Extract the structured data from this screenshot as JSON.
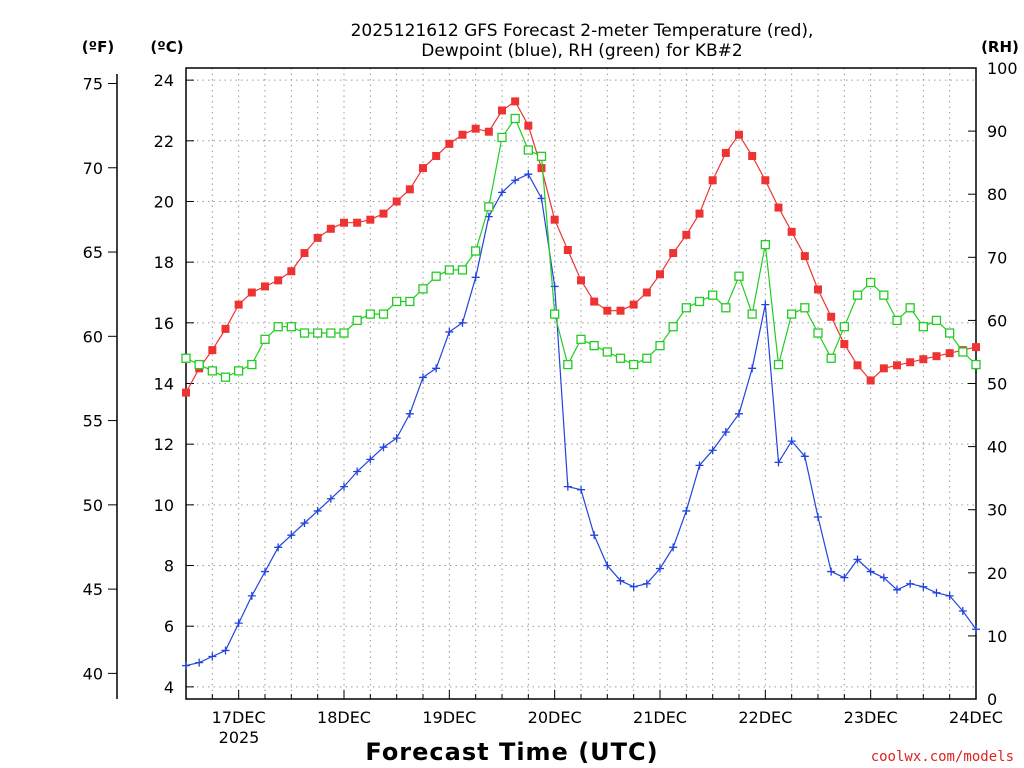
{
  "chart_data": {
    "type": "line",
    "title_line1": "2025121612 GFS Forecast 2-meter Temperature (red),",
    "title_line2": "Dewpoint (blue), RH (green) for KB#2",
    "left_unit_f": "(ºF)",
    "left_unit_c": "(ºC)",
    "right_unit": "(RH)",
    "xlabel": "Forecast Time (UTC)",
    "credit": "coolwx.com/models",
    "x_year_label": "2025",
    "x_tick_labels": [
      "17DEC",
      "18DEC",
      "19DEC",
      "20DEC",
      "21DEC",
      "22DEC",
      "23DEC",
      "24DEC"
    ],
    "x_tick_days": [
      17,
      18,
      19,
      20,
      21,
      22,
      23,
      24
    ],
    "xlim_days": [
      16.5,
      24.0
    ],
    "ylim_c": [
      3.6,
      24.4
    ],
    "c_ticks": [
      4,
      6,
      8,
      10,
      12,
      14,
      16,
      18,
      20,
      22,
      24
    ],
    "f_ticks": [
      40,
      45,
      50,
      55,
      60,
      65,
      70,
      75
    ],
    "f_tick_labels": [
      "40",
      "45",
      "50",
      "55",
      "60",
      "65",
      "70",
      "75"
    ],
    "rh_ticks": [
      0,
      10,
      20,
      30,
      40,
      50,
      60,
      70,
      80,
      90,
      100
    ],
    "rh_tick_labels": [
      "0",
      "10",
      "20",
      "30",
      "40",
      "50",
      "60",
      "70",
      "80",
      "90",
      "100"
    ],
    "rh_lim": [
      0,
      100
    ],
    "grid": true,
    "colors": {
      "temperature": "#ee3333",
      "dewpoint": "#2244dd",
      "rh": "#22cc22",
      "credit": "#dd2222"
    },
    "series": [
      {
        "name": "Temperature (°C)",
        "marker": "filled-square",
        "color": "#ee3333",
        "x": [
          16.5,
          16.625,
          16.75,
          16.875,
          17.0,
          17.125,
          17.25,
          17.375,
          17.5,
          17.625,
          17.75,
          17.875,
          18.0,
          18.125,
          18.25,
          18.375,
          18.5,
          18.625,
          18.75,
          18.875,
          19.0,
          19.125,
          19.25,
          19.375,
          19.5,
          19.625,
          19.75,
          19.875,
          20.0,
          20.125,
          20.25,
          20.375,
          20.5,
          20.625,
          20.75,
          20.875,
          21.0,
          21.125,
          21.25,
          21.375,
          21.5,
          21.625,
          21.75,
          21.875,
          22.0,
          22.125,
          22.25,
          22.375,
          22.5,
          22.625,
          22.75,
          22.875,
          23.0,
          23.125,
          23.25,
          23.375,
          23.5,
          23.625,
          23.75,
          23.875,
          24.0
        ],
        "values": [
          13.7,
          14.5,
          15.1,
          15.8,
          16.6,
          17.0,
          17.2,
          17.4,
          17.7,
          18.3,
          18.8,
          19.1,
          19.3,
          19.3,
          19.4,
          19.6,
          20.0,
          20.4,
          21.1,
          21.5,
          21.9,
          22.2,
          22.4,
          22.3,
          23.0,
          23.3,
          22.5,
          21.1,
          19.4,
          18.4,
          17.4,
          16.7,
          16.4,
          16.4,
          16.6,
          17.0,
          17.6,
          18.3,
          18.9,
          19.6,
          20.7,
          21.6,
          22.2,
          21.5,
          20.7,
          19.8,
          19.0,
          18.2,
          17.1,
          16.2,
          15.3,
          14.6,
          14.1,
          14.5,
          14.6,
          14.7,
          14.8,
          14.9,
          15.0,
          15.1,
          15.2
        ]
      },
      {
        "name": "Dewpoint (°C)",
        "marker": "plus",
        "color": "#2244dd",
        "x": [
          16.5,
          16.625,
          16.75,
          16.875,
          17.0,
          17.125,
          17.25,
          17.375,
          17.5,
          17.625,
          17.75,
          17.875,
          18.0,
          18.125,
          18.25,
          18.375,
          18.5,
          18.625,
          18.75,
          18.875,
          19.0,
          19.125,
          19.25,
          19.375,
          19.5,
          19.625,
          19.75,
          19.875,
          20.0,
          20.125,
          20.25,
          20.375,
          20.5,
          20.625,
          20.75,
          20.875,
          21.0,
          21.125,
          21.25,
          21.375,
          21.5,
          21.625,
          21.75,
          21.875,
          22.0,
          22.125,
          22.25,
          22.375,
          22.5,
          22.625,
          22.75,
          22.875,
          23.0,
          23.125,
          23.25,
          23.375,
          23.5,
          23.625,
          23.75,
          23.875,
          24.0
        ],
        "values": [
          4.7,
          4.8,
          5.0,
          5.2,
          6.1,
          7.0,
          7.8,
          8.6,
          9.0,
          9.4,
          9.8,
          10.2,
          10.6,
          11.1,
          11.5,
          11.9,
          12.2,
          13.0,
          14.2,
          14.5,
          15.7,
          16.0,
          17.5,
          19.5,
          20.3,
          20.7,
          20.9,
          20.1,
          17.2,
          10.6,
          10.5,
          9.0,
          8.0,
          7.5,
          7.3,
          7.4,
          7.9,
          8.6,
          9.8,
          11.3,
          11.8,
          12.4,
          13.0,
          14.5,
          16.6,
          11.4,
          12.1,
          11.6,
          9.6,
          7.8,
          7.6,
          8.2,
          7.8,
          7.6,
          7.2,
          7.4,
          7.3,
          7.1,
          7.0,
          6.5,
          5.9
        ]
      },
      {
        "name": "RH (%)",
        "marker": "open-square",
        "color": "#22cc22",
        "x": [
          16.5,
          16.625,
          16.75,
          16.875,
          17.0,
          17.125,
          17.25,
          17.375,
          17.5,
          17.625,
          17.75,
          17.875,
          18.0,
          18.125,
          18.25,
          18.375,
          18.5,
          18.625,
          18.75,
          18.875,
          19.0,
          19.125,
          19.25,
          19.375,
          19.5,
          19.625,
          19.75,
          19.875,
          20.0,
          20.125,
          20.25,
          20.375,
          20.5,
          20.625,
          20.75,
          20.875,
          21.0,
          21.125,
          21.25,
          21.375,
          21.5,
          21.625,
          21.75,
          21.875,
          22.0,
          22.125,
          22.25,
          22.375,
          22.5,
          22.625,
          22.75,
          22.875,
          23.0,
          23.125,
          23.25,
          23.375,
          23.5,
          23.625,
          23.75,
          23.875,
          24.0
        ],
        "values": [
          54,
          53,
          52,
          51,
          52,
          53,
          57,
          59,
          59,
          58,
          58,
          58,
          58,
          60,
          61,
          61,
          63,
          63,
          65,
          67,
          68,
          68,
          71,
          78,
          89,
          92,
          87,
          86,
          61,
          53,
          57,
          56,
          55,
          54,
          53,
          54,
          56,
          59,
          62,
          63,
          64,
          62,
          67,
          61,
          72,
          53,
          61,
          62,
          58,
          54,
          59,
          64,
          66,
          64,
          60,
          62,
          59,
          60,
          58,
          55,
          53
        ]
      }
    ]
  }
}
